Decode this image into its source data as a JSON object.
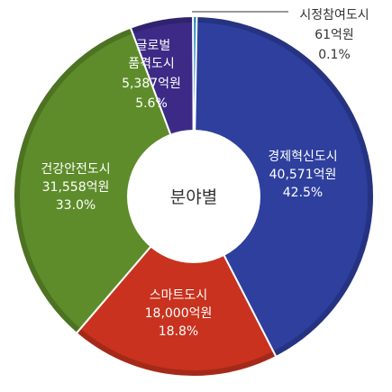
{
  "chart_data": {
    "type": "pie",
    "center_label": "분야별",
    "unit": "억원",
    "slices": [
      {
        "name": "경제혁신도시",
        "value": 40571,
        "value_label": "40,571억원",
        "percent_label": "42.5%",
        "color": "#2e3f9e"
      },
      {
        "name": "스마트도시",
        "value": 18000,
        "value_label": "18,000억원",
        "percent_label": "18.8%",
        "color": "#c9321e"
      },
      {
        "name": "건강안전도시",
        "value": 31558,
        "value_label": "31,558억원",
        "percent_label": "33.0%",
        "color": "#5e8c2a"
      },
      {
        "name": "글로벌 품격도시",
        "name_lines": [
          "글로벌",
          "품격도시"
        ],
        "value": 5387,
        "value_label": "5,387억원",
        "percent_label": "5.6%",
        "color": "#3c2a86"
      },
      {
        "name": "시정참여도시",
        "value": 61,
        "value_label": "61억원",
        "percent_label": "0.1%",
        "color": "#1f8fc0"
      }
    ]
  }
}
